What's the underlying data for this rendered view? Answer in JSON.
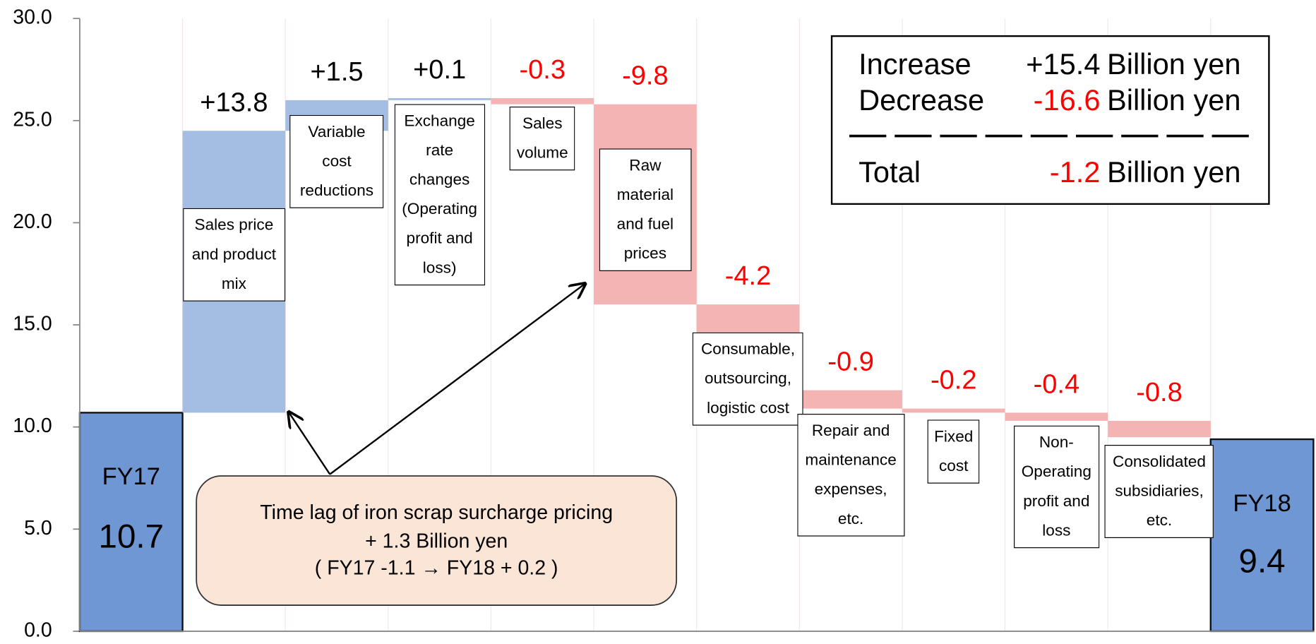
{
  "chart_data": {
    "type": "waterfall",
    "categories": [
      "FY17",
      "Sales price and product mix",
      "Variable cost reductions",
      "Exchange rate changes (Operating profit and loss)",
      "Sales volume",
      "Raw material and fuel prices",
      "Consumable, outsourcing, logistic cost",
      "Repair and maintenance expenses, etc.",
      "Fixed cost",
      "Non-Operating profit and loss",
      "Consolidated subsidiaries, etc.",
      "FY18"
    ],
    "values": [
      10.7,
      13.8,
      1.5,
      0.1,
      -0.3,
      -9.8,
      -4.2,
      -0.9,
      -0.2,
      -0.4,
      -0.8,
      9.4
    ],
    "value_labels": [
      "10.7",
      "+13.8",
      "+1.5",
      "+0.1",
      "-0.3",
      "-9.8",
      "-4.2",
      "-0.9",
      "-0.2",
      "-0.4",
      "-0.8",
      "9.4"
    ],
    "colors": {
      "total": "#6f97d3",
      "increase": "#a3bde3",
      "decrease": "#f4b4b4"
    },
    "ylim": [
      0,
      30
    ],
    "yticks": [
      {
        "value": 0,
        "label": "0.0"
      },
      {
        "value": 5,
        "label": "5.0"
      },
      {
        "value": 10,
        "label": "10.0"
      },
      {
        "value": 15,
        "label": "15.0"
      },
      {
        "value": 20,
        "label": "20.0"
      },
      {
        "value": 25,
        "label": "25.0"
      },
      {
        "value": 30,
        "label": "30.0"
      }
    ],
    "summary": [
      {
        "label": "Increase",
        "value": "+15.4",
        "unit": "Billion yen"
      },
      {
        "label": "Decrease",
        "value": "-16.6",
        "unit": "Billion yen"
      },
      {
        "label": "Total",
        "value": "-1.2",
        "unit": "Billion yen"
      }
    ],
    "annotation": [
      "Time lag of  iron scrap surcharge pricing",
      "+ 1.3 Billion yen",
      "(  FY17  -1.1 → FY18 + 0.2  )"
    ]
  }
}
